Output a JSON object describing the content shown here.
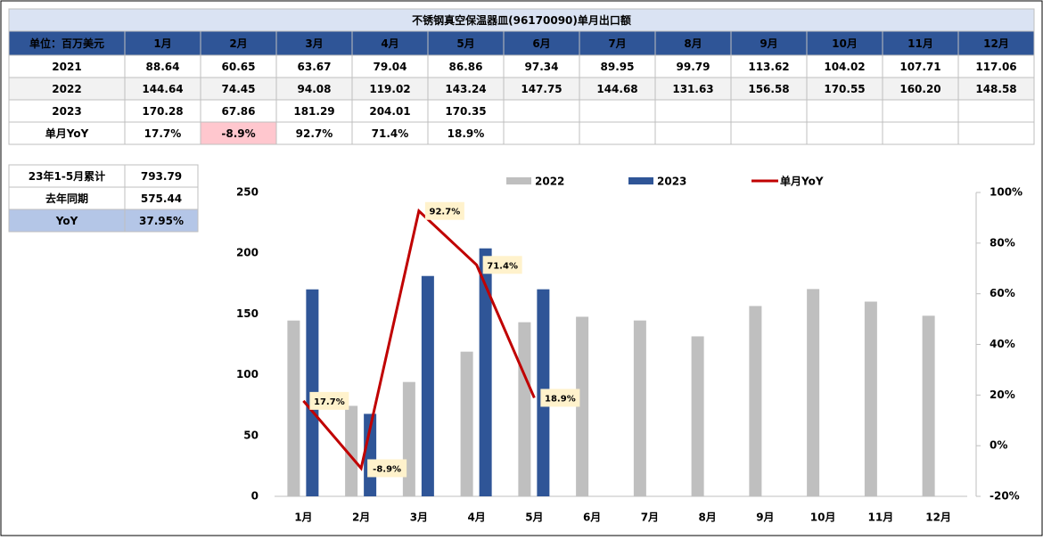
{
  "table": {
    "title": "不锈钢真空保温器皿(96170090)单月出口额",
    "header": [
      "单位：百万美元",
      "1月",
      "2月",
      "3月",
      "4月",
      "5月",
      "6月",
      "7月",
      "8月",
      "9月",
      "10月",
      "11月",
      "12月"
    ],
    "rows": [
      [
        "2021",
        "88.64",
        "60.65",
        "63.67",
        "79.04",
        "86.86",
        "97.34",
        "89.95",
        "99.79",
        "113.62",
        "104.02",
        "107.71",
        "117.06"
      ],
      [
        "2022",
        "144.64",
        "74.45",
        "94.08",
        "119.02",
        "143.24",
        "147.75",
        "144.68",
        "131.63",
        "156.58",
        "170.55",
        "160.20",
        "148.58"
      ],
      [
        "2023",
        "170.28",
        "67.86",
        "181.29",
        "204.01",
        "170.35"
      ],
      [
        "单月YoY",
        "17.7%",
        "-8.9%",
        "92.7%",
        "71.4%",
        "18.9%"
      ]
    ]
  },
  "summary": {
    "rows": [
      [
        "23年1-5月累计",
        "793.79"
      ],
      [
        "去年同期",
        "575.44"
      ],
      [
        "YoY",
        "37.95%"
      ]
    ]
  },
  "chart_data": {
    "type": "bar",
    "categories": [
      "1月",
      "2月",
      "3月",
      "4月",
      "5月",
      "6月",
      "7月",
      "8月",
      "9月",
      "10月",
      "11月",
      "12月"
    ],
    "series": [
      {
        "name": "2022",
        "color": "#bfbfbf",
        "values": [
          144.64,
          74.45,
          94.08,
          119.02,
          143.24,
          147.75,
          144.68,
          131.63,
          156.58,
          170.55,
          160.2,
          148.58
        ]
      },
      {
        "name": "2023",
        "color": "#2f5597",
        "values": [
          170.28,
          67.86,
          181.29,
          204.01,
          170.35,
          null,
          null,
          null,
          null,
          null,
          null,
          null
        ]
      },
      {
        "name": "单月YoY",
        "color": "#c00000",
        "type": "line",
        "axis": "y2",
        "values": [
          17.7,
          -8.9,
          92.7,
          71.4,
          18.9,
          null,
          null,
          null,
          null,
          null,
          null,
          null
        ],
        "value_labels": [
          "17.7%",
          "-8.9%",
          "92.7%",
          "71.4%",
          "18.9%",
          null,
          null,
          null,
          null,
          null,
          null,
          null
        ]
      }
    ],
    "ylim": [
      0,
      250
    ],
    "yticks": [
      0,
      50,
      100,
      150,
      200,
      250
    ],
    "y2lim": [
      -20,
      100
    ],
    "y2ticks": [
      {
        "value": -20,
        "label": "-20%"
      },
      {
        "value": 0,
        "label": "0%"
      },
      {
        "value": 20,
        "label": "20%"
      },
      {
        "value": 40,
        "label": "40%"
      },
      {
        "value": 60,
        "label": "60%"
      },
      {
        "value": 80,
        "label": "80%"
      },
      {
        "value": 100,
        "label": "100%"
      }
    ]
  }
}
